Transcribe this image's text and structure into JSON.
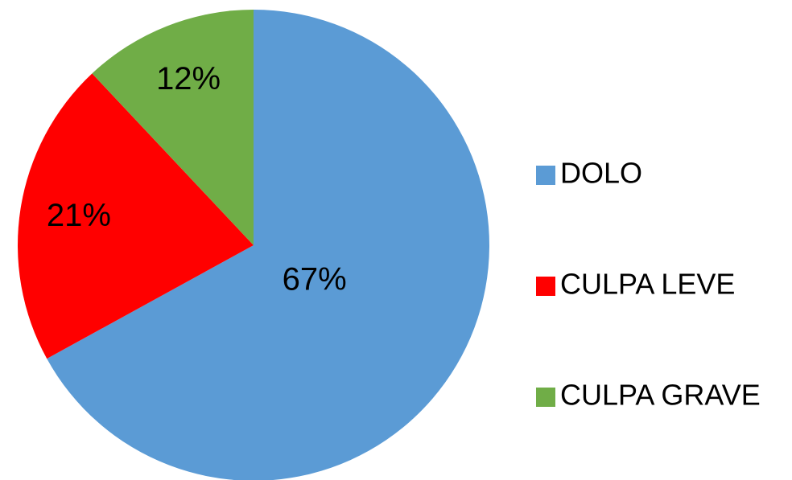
{
  "chart_data": {
    "type": "pie",
    "categories": [
      "DOLO",
      "CULPA LEVE",
      "CULPA GRAVE"
    ],
    "values": [
      67,
      21,
      12
    ],
    "value_labels": [
      "67%",
      "21%",
      "12%"
    ],
    "colors": [
      "#5b9bd5",
      "#ff0000",
      "#70ad47"
    ],
    "legend": "right"
  }
}
